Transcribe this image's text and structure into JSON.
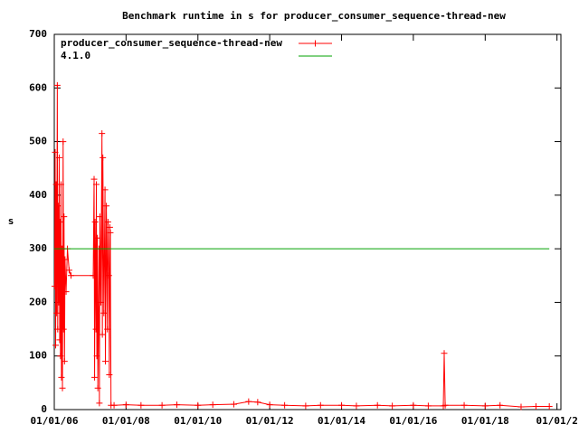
{
  "chart_data": {
    "type": "line",
    "title": "Benchmark runtime in s for producer_consumer_sequence-thread-new",
    "y_label": "s",
    "xlim": [
      "2006-01-01",
      "2020-02-10"
    ],
    "xticks": [
      {
        "value": "2006-01-01",
        "label": "01/01/06"
      },
      {
        "value": "2008-01-01",
        "label": "01/01/08"
      },
      {
        "value": "2010-01-01",
        "label": "01/01/10"
      },
      {
        "value": "2012-01-01",
        "label": "01/01/12"
      },
      {
        "value": "2014-01-01",
        "label": "01/01/14"
      },
      {
        "value": "2016-01-01",
        "label": "01/01/16"
      },
      {
        "value": "2018-01-01",
        "label": "01/01/18"
      },
      {
        "value": "2020-01-01",
        "label": "01/01/2"
      }
    ],
    "ylim": [
      0,
      700
    ],
    "yticks": [
      0,
      100,
      200,
      300,
      400,
      500,
      600,
      700
    ],
    "legend": "top-left",
    "series": [
      {
        "name": "producer_consumer_sequence-thread-new",
        "color": "#ff0000",
        "marker": "plus",
        "x": [
          "2006-01-05",
          "2006-01-10",
          "2006-01-15",
          "2006-01-20",
          "2006-01-25",
          "2006-02-01",
          "2006-02-05",
          "2006-02-10",
          "2006-02-15",
          "2006-02-20",
          "2006-02-25",
          "2006-03-01",
          "2006-03-05",
          "2006-03-10",
          "2006-03-15",
          "2006-03-20",
          "2006-03-25",
          "2006-04-01",
          "2006-04-05",
          "2006-04-10",
          "2006-04-15",
          "2006-04-20",
          "2006-05-01",
          "2006-05-15",
          "2006-06-01",
          "2006-06-20",
          "2007-02-01",
          "2007-02-10",
          "2007-02-15",
          "2007-02-20",
          "2007-03-01",
          "2007-03-05",
          "2007-03-10",
          "2007-03-15",
          "2007-03-20",
          "2007-04-01",
          "2007-04-05",
          "2007-04-10",
          "2007-04-20",
          "2007-05-01",
          "2007-05-05",
          "2007-05-10",
          "2007-05-20",
          "2007-06-01",
          "2007-06-05",
          "2007-06-15",
          "2007-06-25",
          "2007-07-01",
          "2007-07-10",
          "2007-07-15",
          "2007-07-20",
          "2007-07-25",
          "2007-08-01",
          "2007-09-01",
          "2008-01-01",
          "2008-06-01",
          "2009-01-01",
          "2009-06-01",
          "2010-01-01",
          "2010-06-01",
          "2011-01-01",
          "2011-06-01",
          "2011-09-01",
          "2012-01-01",
          "2012-06-01",
          "2013-01-01",
          "2013-06-01",
          "2014-01-01",
          "2014-06-01",
          "2015-01-01",
          "2015-06-01",
          "2016-01-01",
          "2016-06-01",
          "2016-11-01",
          "2016-11-10",
          "2016-11-20",
          "2017-06-01",
          "2018-01-01",
          "2018-06-01",
          "2019-01-01",
          "2019-06-01",
          "2019-10-15"
        ],
        "values": [
          230,
          480,
          120,
          420,
          180,
          605,
          150,
          380,
          200,
          470,
          130,
          350,
          100,
          420,
          60,
          300,
          40,
          500,
          150,
          360,
          90,
          280,
          220,
          300,
          260,
          250,
          250,
          430,
          60,
          350,
          150,
          420,
          100,
          320,
          40,
          300,
          12,
          360,
          200,
          515,
          140,
          470,
          180,
          410,
          90,
          380,
          150,
          350,
          250,
          65,
          340,
          330,
          8,
          8,
          9,
          8,
          8,
          9,
          8,
          9,
          10,
          15,
          14,
          9,
          8,
          7,
          8,
          8,
          7,
          8,
          7,
          8,
          7,
          7,
          105,
          8,
          8,
          7,
          8,
          5,
          6,
          6
        ]
      },
      {
        "name": "4.1.0",
        "color": "#00a000",
        "x": [
          "2006-01-01",
          "2019-10-15"
        ],
        "values": [
          300,
          300
        ]
      }
    ]
  }
}
